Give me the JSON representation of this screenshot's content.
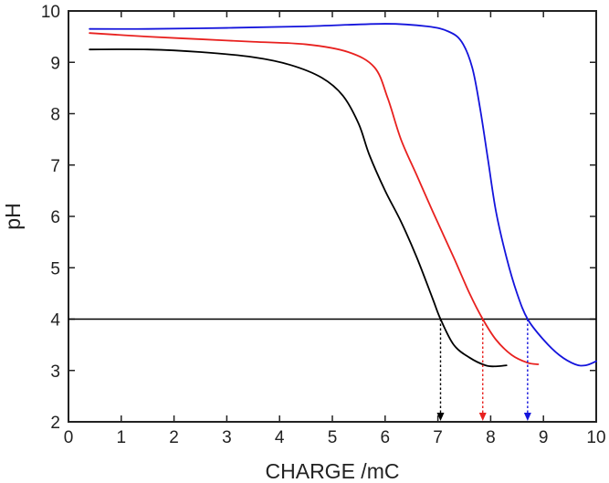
{
  "chart_data": {
    "type": "line",
    "title": "",
    "xlabel": "CHARGE /mC",
    "ylabel": "pH",
    "xlim": [
      0,
      10
    ],
    "ylim": [
      2,
      10
    ],
    "xticks": [
      "0",
      "1",
      "2",
      "3",
      "4",
      "5",
      "6",
      "7",
      "8",
      "9",
      "10"
    ],
    "yticks": [
      "2",
      "3",
      "4",
      "5",
      "6",
      "7",
      "8",
      "9",
      "10"
    ],
    "grid": false,
    "legend": "none",
    "series": [
      {
        "color": "#000000",
        "x": [
          0.4,
          1.5,
          2.5,
          3.5,
          4.2,
          4.8,
          5.2,
          5.5,
          5.7,
          6.0,
          6.3,
          6.6,
          6.9,
          7.05,
          7.3,
          7.6,
          7.9,
          8.1,
          8.3
        ],
        "y": [
          9.25,
          9.25,
          9.2,
          9.1,
          8.95,
          8.7,
          8.35,
          7.8,
          7.2,
          6.5,
          5.9,
          5.2,
          4.4,
          4.0,
          3.5,
          3.25,
          3.1,
          3.08,
          3.1
        ]
      },
      {
        "color": "#e8211f",
        "x": [
          0.4,
          1.5,
          2.5,
          3.5,
          4.5,
          5.3,
          5.8,
          6.05,
          6.3,
          6.6,
          6.9,
          7.3,
          7.6,
          7.85,
          8.1,
          8.4,
          8.7,
          8.9
        ],
        "y": [
          9.57,
          9.5,
          9.45,
          9.4,
          9.35,
          9.2,
          8.9,
          8.3,
          7.5,
          6.8,
          6.1,
          5.2,
          4.5,
          4.0,
          3.6,
          3.3,
          3.15,
          3.12
        ]
      },
      {
        "color": "#1414dc",
        "x": [
          0.4,
          1.5,
          3.0,
          4.5,
          6.0,
          6.8,
          7.2,
          7.45,
          7.65,
          7.8,
          7.95,
          8.1,
          8.3,
          8.5,
          8.7,
          9.0,
          9.3,
          9.6,
          9.8,
          10.0
        ],
        "y": [
          9.65,
          9.65,
          9.67,
          9.7,
          9.75,
          9.7,
          9.6,
          9.4,
          8.9,
          8.1,
          7.1,
          6.1,
          5.2,
          4.5,
          4.0,
          3.6,
          3.3,
          3.12,
          3.1,
          3.18
        ]
      }
    ],
    "reference_line": {
      "y": 4,
      "color": "#000000"
    },
    "markers": [
      {
        "x": 7.05,
        "color": "#000000"
      },
      {
        "x": 7.85,
        "color": "#e8211f"
      },
      {
        "x": 8.7,
        "color": "#1414dc"
      }
    ]
  }
}
